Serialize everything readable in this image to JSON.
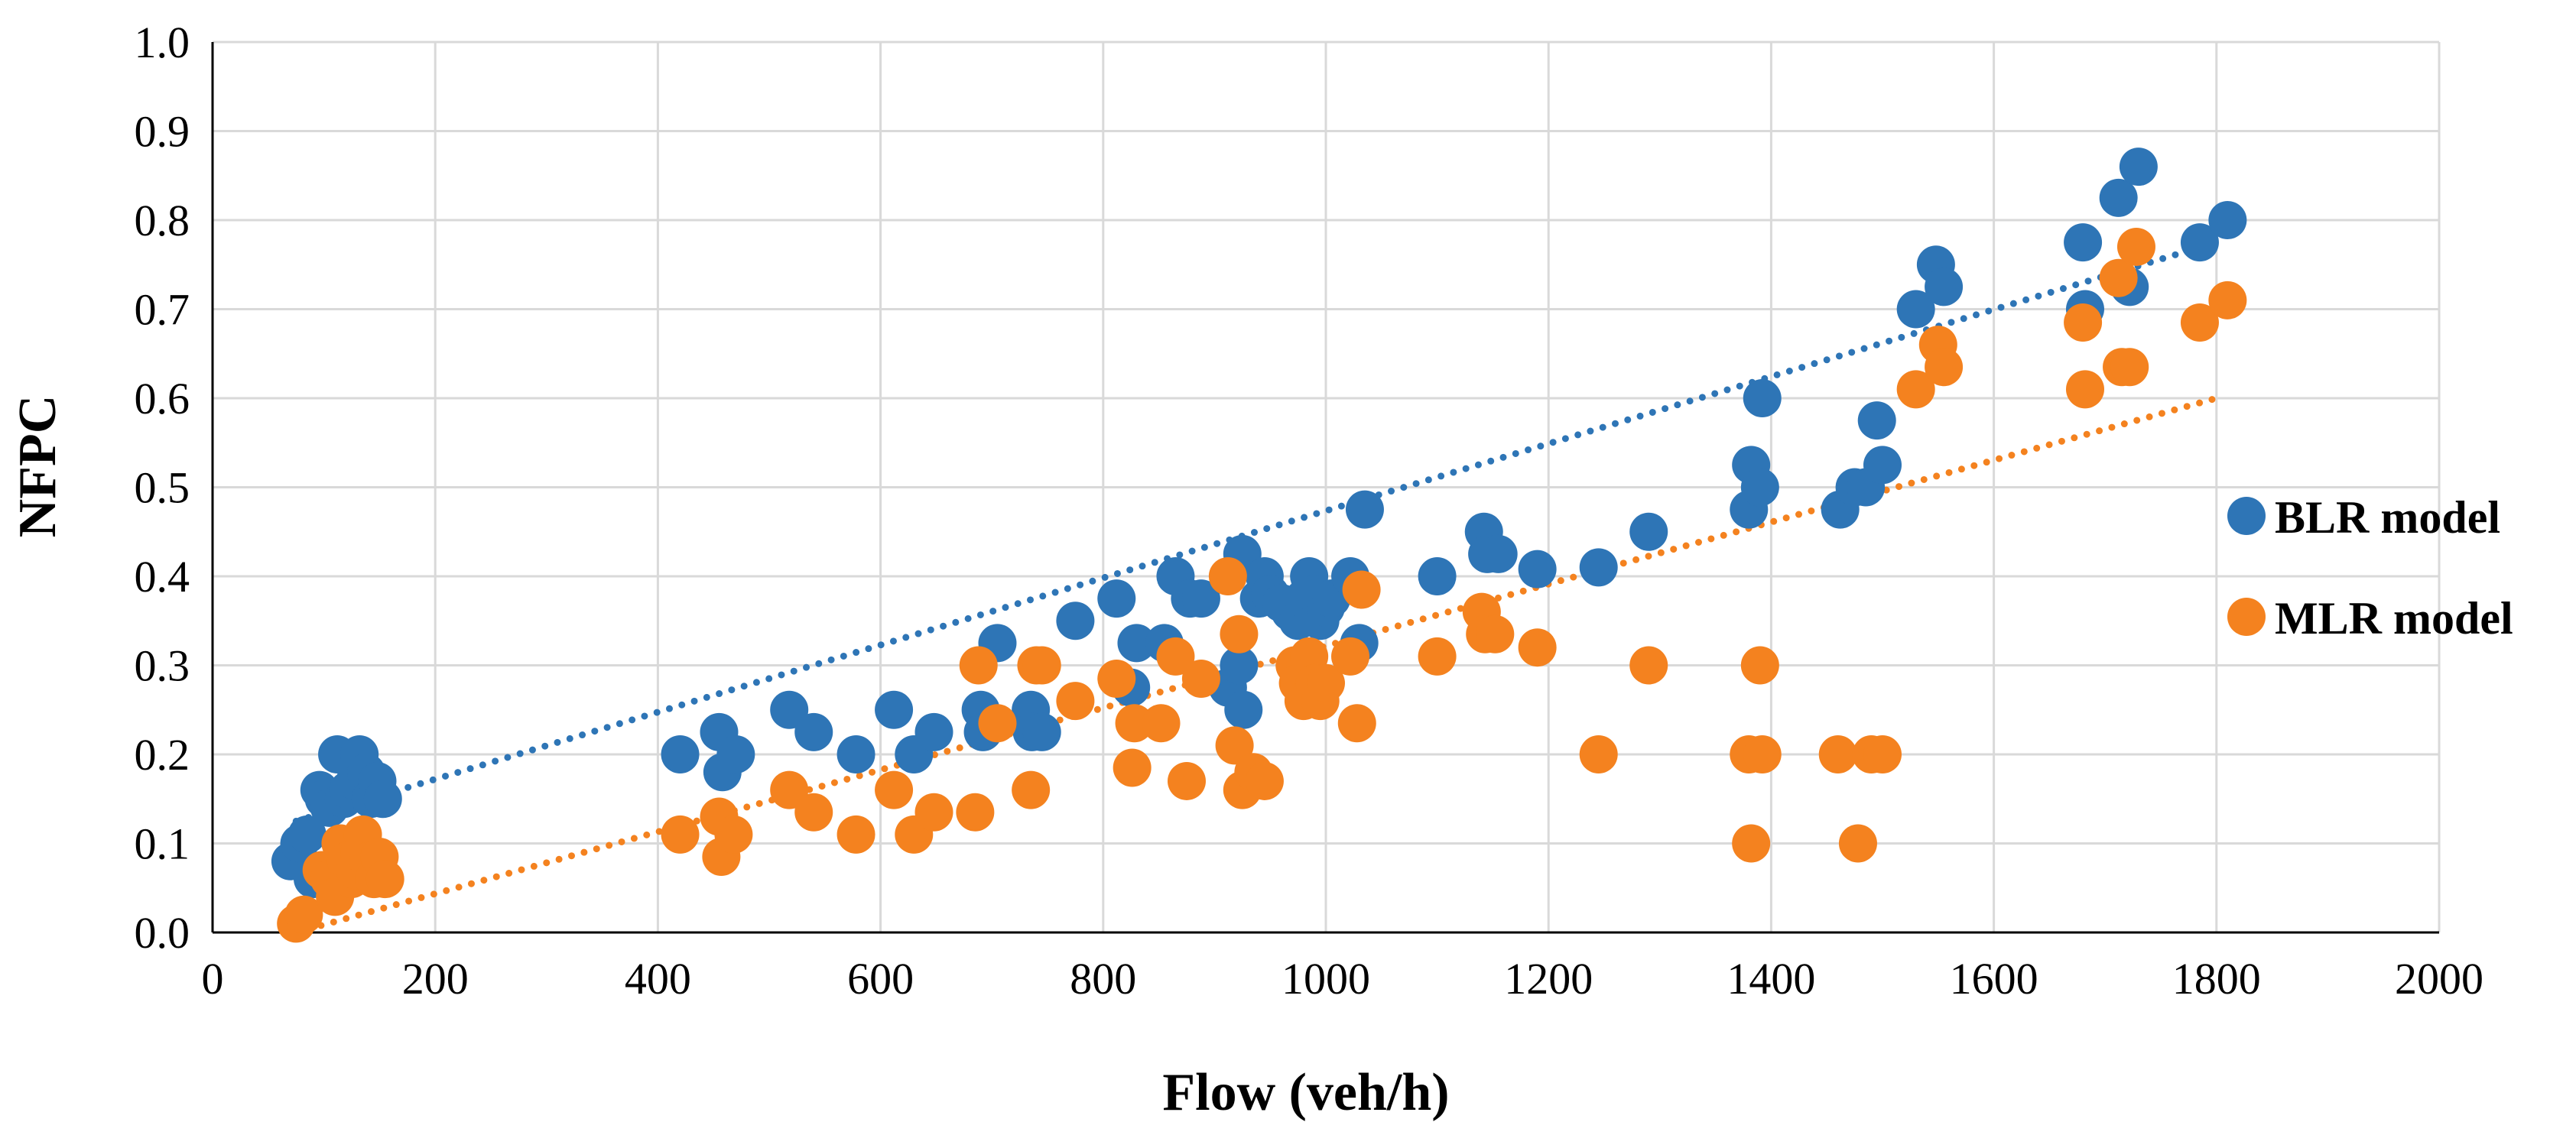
{
  "chart_data": {
    "type": "scatter",
    "title": "",
    "xlabel": "Flow (veh/h)",
    "ylabel": "NFPC",
    "xlim": [
      0,
      2000
    ],
    "ylim": [
      0.0,
      1.0
    ],
    "x_ticks": [
      0,
      200,
      400,
      600,
      800,
      1000,
      1200,
      1400,
      1600,
      1800,
      2000
    ],
    "y_ticks": [
      0.0,
      0.1,
      0.2,
      0.3,
      0.4,
      0.5,
      0.6,
      0.7,
      0.8,
      0.9,
      1.0
    ],
    "x_tick_labels": [
      "0",
      "200",
      "400",
      "600",
      "800",
      "1000",
      "1200",
      "1400",
      "1600",
      "1800",
      "2000"
    ],
    "y_tick_labels": [
      "0.0",
      "0.1",
      "0.2",
      "0.3",
      "0.4",
      "0.5",
      "0.6",
      "0.7",
      "0.8",
      "0.9",
      "1.0"
    ],
    "grid": true,
    "legend_position": "right",
    "series": [
      {
        "name": "BLR model",
        "color": "#2E75B6",
        "marker": "circle",
        "points": [
          [
            70,
            0.08
          ],
          [
            78,
            0.1
          ],
          [
            85,
            0.11
          ],
          [
            90,
            0.06
          ],
          [
            96,
            0.16
          ],
          [
            100,
            0.15
          ],
          [
            105,
            0.14
          ],
          [
            112,
            0.2
          ],
          [
            118,
            0.15
          ],
          [
            122,
            0.16
          ],
          [
            128,
            0.17
          ],
          [
            132,
            0.2
          ],
          [
            138,
            0.18
          ],
          [
            142,
            0.15
          ],
          [
            148,
            0.17
          ],
          [
            153,
            0.15
          ],
          [
            420,
            0.2
          ],
          [
            455,
            0.225
          ],
          [
            458,
            0.18
          ],
          [
            470,
            0.2
          ],
          [
            518,
            0.25
          ],
          [
            540,
            0.225
          ],
          [
            578,
            0.2
          ],
          [
            612,
            0.25
          ],
          [
            630,
            0.2
          ],
          [
            648,
            0.225
          ],
          [
            690,
            0.25
          ],
          [
            692,
            0.225
          ],
          [
            705,
            0.325
          ],
          [
            735,
            0.25
          ],
          [
            736,
            0.225
          ],
          [
            745,
            0.225
          ],
          [
            775,
            0.35
          ],
          [
            812,
            0.375
          ],
          [
            825,
            0.275
          ],
          [
            830,
            0.325
          ],
          [
            855,
            0.325
          ],
          [
            865,
            0.4
          ],
          [
            878,
            0.375
          ],
          [
            888,
            0.375
          ],
          [
            912,
            0.275
          ],
          [
            922,
            0.3
          ],
          [
            925,
            0.425
          ],
          [
            926,
            0.25
          ],
          [
            940,
            0.375
          ],
          [
            945,
            0.4
          ],
          [
            950,
            0.38
          ],
          [
            960,
            0.37
          ],
          [
            968,
            0.36
          ],
          [
            975,
            0.35
          ],
          [
            980,
            0.375
          ],
          [
            985,
            0.4
          ],
          [
            990,
            0.38
          ],
          [
            995,
            0.35
          ],
          [
            1000,
            0.365
          ],
          [
            1005,
            0.375
          ],
          [
            1022,
            0.4
          ],
          [
            1030,
            0.325
          ],
          [
            1035,
            0.475
          ],
          [
            1100,
            0.4
          ],
          [
            1142,
            0.45
          ],
          [
            1145,
            0.425
          ],
          [
            1155,
            0.425
          ],
          [
            1190,
            0.408
          ],
          [
            1245,
            0.41
          ],
          [
            1290,
            0.45
          ],
          [
            1380,
            0.475
          ],
          [
            1382,
            0.525
          ],
          [
            1390,
            0.5
          ],
          [
            1392,
            0.6
          ],
          [
            1462,
            0.475
          ],
          [
            1475,
            0.5
          ],
          [
            1485,
            0.5
          ],
          [
            1495,
            0.575
          ],
          [
            1500,
            0.525
          ],
          [
            1530,
            0.7
          ],
          [
            1548,
            0.75
          ],
          [
            1555,
            0.725
          ],
          [
            1680,
            0.775
          ],
          [
            1682,
            0.7
          ],
          [
            1712,
            0.825
          ],
          [
            1722,
            0.725
          ],
          [
            1730,
            0.86
          ],
          [
            1785,
            0.775
          ],
          [
            1810,
            0.8
          ]
        ],
        "trendline": {
          "style": "dotted",
          "x": [
            75,
            1800
          ],
          "y": [
            0.125,
            0.775
          ]
        }
      },
      {
        "name": "MLR model",
        "color": "#F4821F",
        "marker": "circle",
        "points": [
          [
            75,
            0.01
          ],
          [
            82,
            0.02
          ],
          [
            98,
            0.07
          ],
          [
            105,
            0.06
          ],
          [
            110,
            0.04
          ],
          [
            115,
            0.1
          ],
          [
            120,
            0.08
          ],
          [
            125,
            0.06
          ],
          [
            128,
            0.07
          ],
          [
            132,
            0.09
          ],
          [
            135,
            0.11
          ],
          [
            140,
            0.08
          ],
          [
            145,
            0.06
          ],
          [
            150,
            0.085
          ],
          [
            155,
            0.06
          ],
          [
            420,
            0.11
          ],
          [
            455,
            0.13
          ],
          [
            457,
            0.085
          ],
          [
            468,
            0.11
          ],
          [
            518,
            0.16
          ],
          [
            540,
            0.135
          ],
          [
            578,
            0.11
          ],
          [
            612,
            0.16
          ],
          [
            630,
            0.11
          ],
          [
            648,
            0.135
          ],
          [
            685,
            0.135
          ],
          [
            688,
            0.3
          ],
          [
            705,
            0.235
          ],
          [
            735,
            0.16
          ],
          [
            740,
            0.3
          ],
          [
            745,
            0.3
          ],
          [
            775,
            0.26
          ],
          [
            812,
            0.285
          ],
          [
            826,
            0.185
          ],
          [
            828,
            0.235
          ],
          [
            852,
            0.235
          ],
          [
            865,
            0.31
          ],
          [
            875,
            0.17
          ],
          [
            888,
            0.285
          ],
          [
            912,
            0.4
          ],
          [
            918,
            0.21
          ],
          [
            922,
            0.335
          ],
          [
            925,
            0.16
          ],
          [
            935,
            0.18
          ],
          [
            945,
            0.17
          ],
          [
            972,
            0.3
          ],
          [
            975,
            0.28
          ],
          [
            980,
            0.26
          ],
          [
            985,
            0.31
          ],
          [
            990,
            0.28
          ],
          [
            995,
            0.26
          ],
          [
            1000,
            0.28
          ],
          [
            1022,
            0.31
          ],
          [
            1028,
            0.235
          ],
          [
            1032,
            0.385
          ],
          [
            1100,
            0.31
          ],
          [
            1140,
            0.36
          ],
          [
            1143,
            0.335
          ],
          [
            1152,
            0.335
          ],
          [
            1190,
            0.32
          ],
          [
            1245,
            0.2
          ],
          [
            1290,
            0.3
          ],
          [
            1380,
            0.2
          ],
          [
            1382,
            0.1
          ],
          [
            1390,
            0.3
          ],
          [
            1392,
            0.2
          ],
          [
            1460,
            0.2
          ],
          [
            1478,
            0.1
          ],
          [
            1490,
            0.2
          ],
          [
            1500,
            0.2
          ],
          [
            1530,
            0.61
          ],
          [
            1550,
            0.66
          ],
          [
            1555,
            0.635
          ],
          [
            1680,
            0.685
          ],
          [
            1682,
            0.61
          ],
          [
            1712,
            0.735
          ],
          [
            1715,
            0.635
          ],
          [
            1722,
            0.635
          ],
          [
            1728,
            0.77
          ],
          [
            1785,
            0.685
          ],
          [
            1810,
            0.71
          ]
        ],
        "trendline": {
          "style": "dotted",
          "x": [
            75,
            1800
          ],
          "y": [
            0.0,
            0.6
          ]
        }
      }
    ]
  }
}
